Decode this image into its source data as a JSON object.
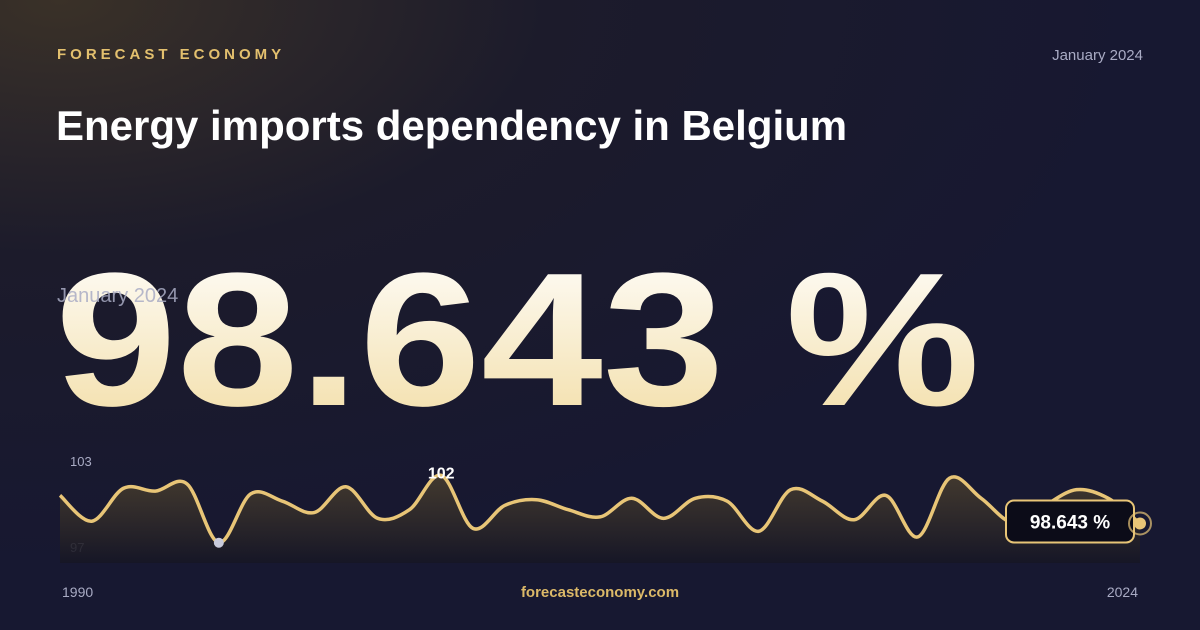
{
  "brand": "FORECAST ECONOMY",
  "date": "January 2024",
  "title": "Energy imports dependency in Belgium",
  "headline": {
    "value": 98.643,
    "label": "98.643 %",
    "date": "January 2024"
  },
  "footer": "forecasteconomy.com",
  "chart_data": {
    "type": "line",
    "x": [
      1990,
      1991,
      1992,
      1993,
      1994,
      1995,
      1996,
      1997,
      1998,
      1999,
      2000,
      2001,
      2002,
      2003,
      2004,
      2005,
      2006,
      2007,
      2008,
      2009,
      2010,
      2011,
      2012,
      2013,
      2014,
      2015,
      2016,
      2017,
      2018,
      2019,
      2020,
      2021,
      2022,
      2023,
      2024
    ],
    "series": [
      {
        "name": "Energy imports dependency",
        "color": "#e8c577",
        "values": [
          100.6,
          98.8,
          101.1,
          100.9,
          101.4,
          97.3,
          100.7,
          100.2,
          99.4,
          101.2,
          99.0,
          99.6,
          102,
          98.3,
          99.9,
          100.3,
          99.6,
          99.1,
          100.4,
          99.0,
          100.4,
          100.2,
          98.1,
          101.0,
          100.2,
          98.9,
          100.6,
          97.7,
          101.8,
          100.4,
          98.7,
          99.9,
          101.0,
          100.4,
          98.643
        ]
      }
    ],
    "xlim": [
      1990,
      2024
    ],
    "xticks": [
      1990,
      2024
    ],
    "ylim": [
      97,
      103
    ],
    "yticks": [
      97,
      103
    ]
  }
}
